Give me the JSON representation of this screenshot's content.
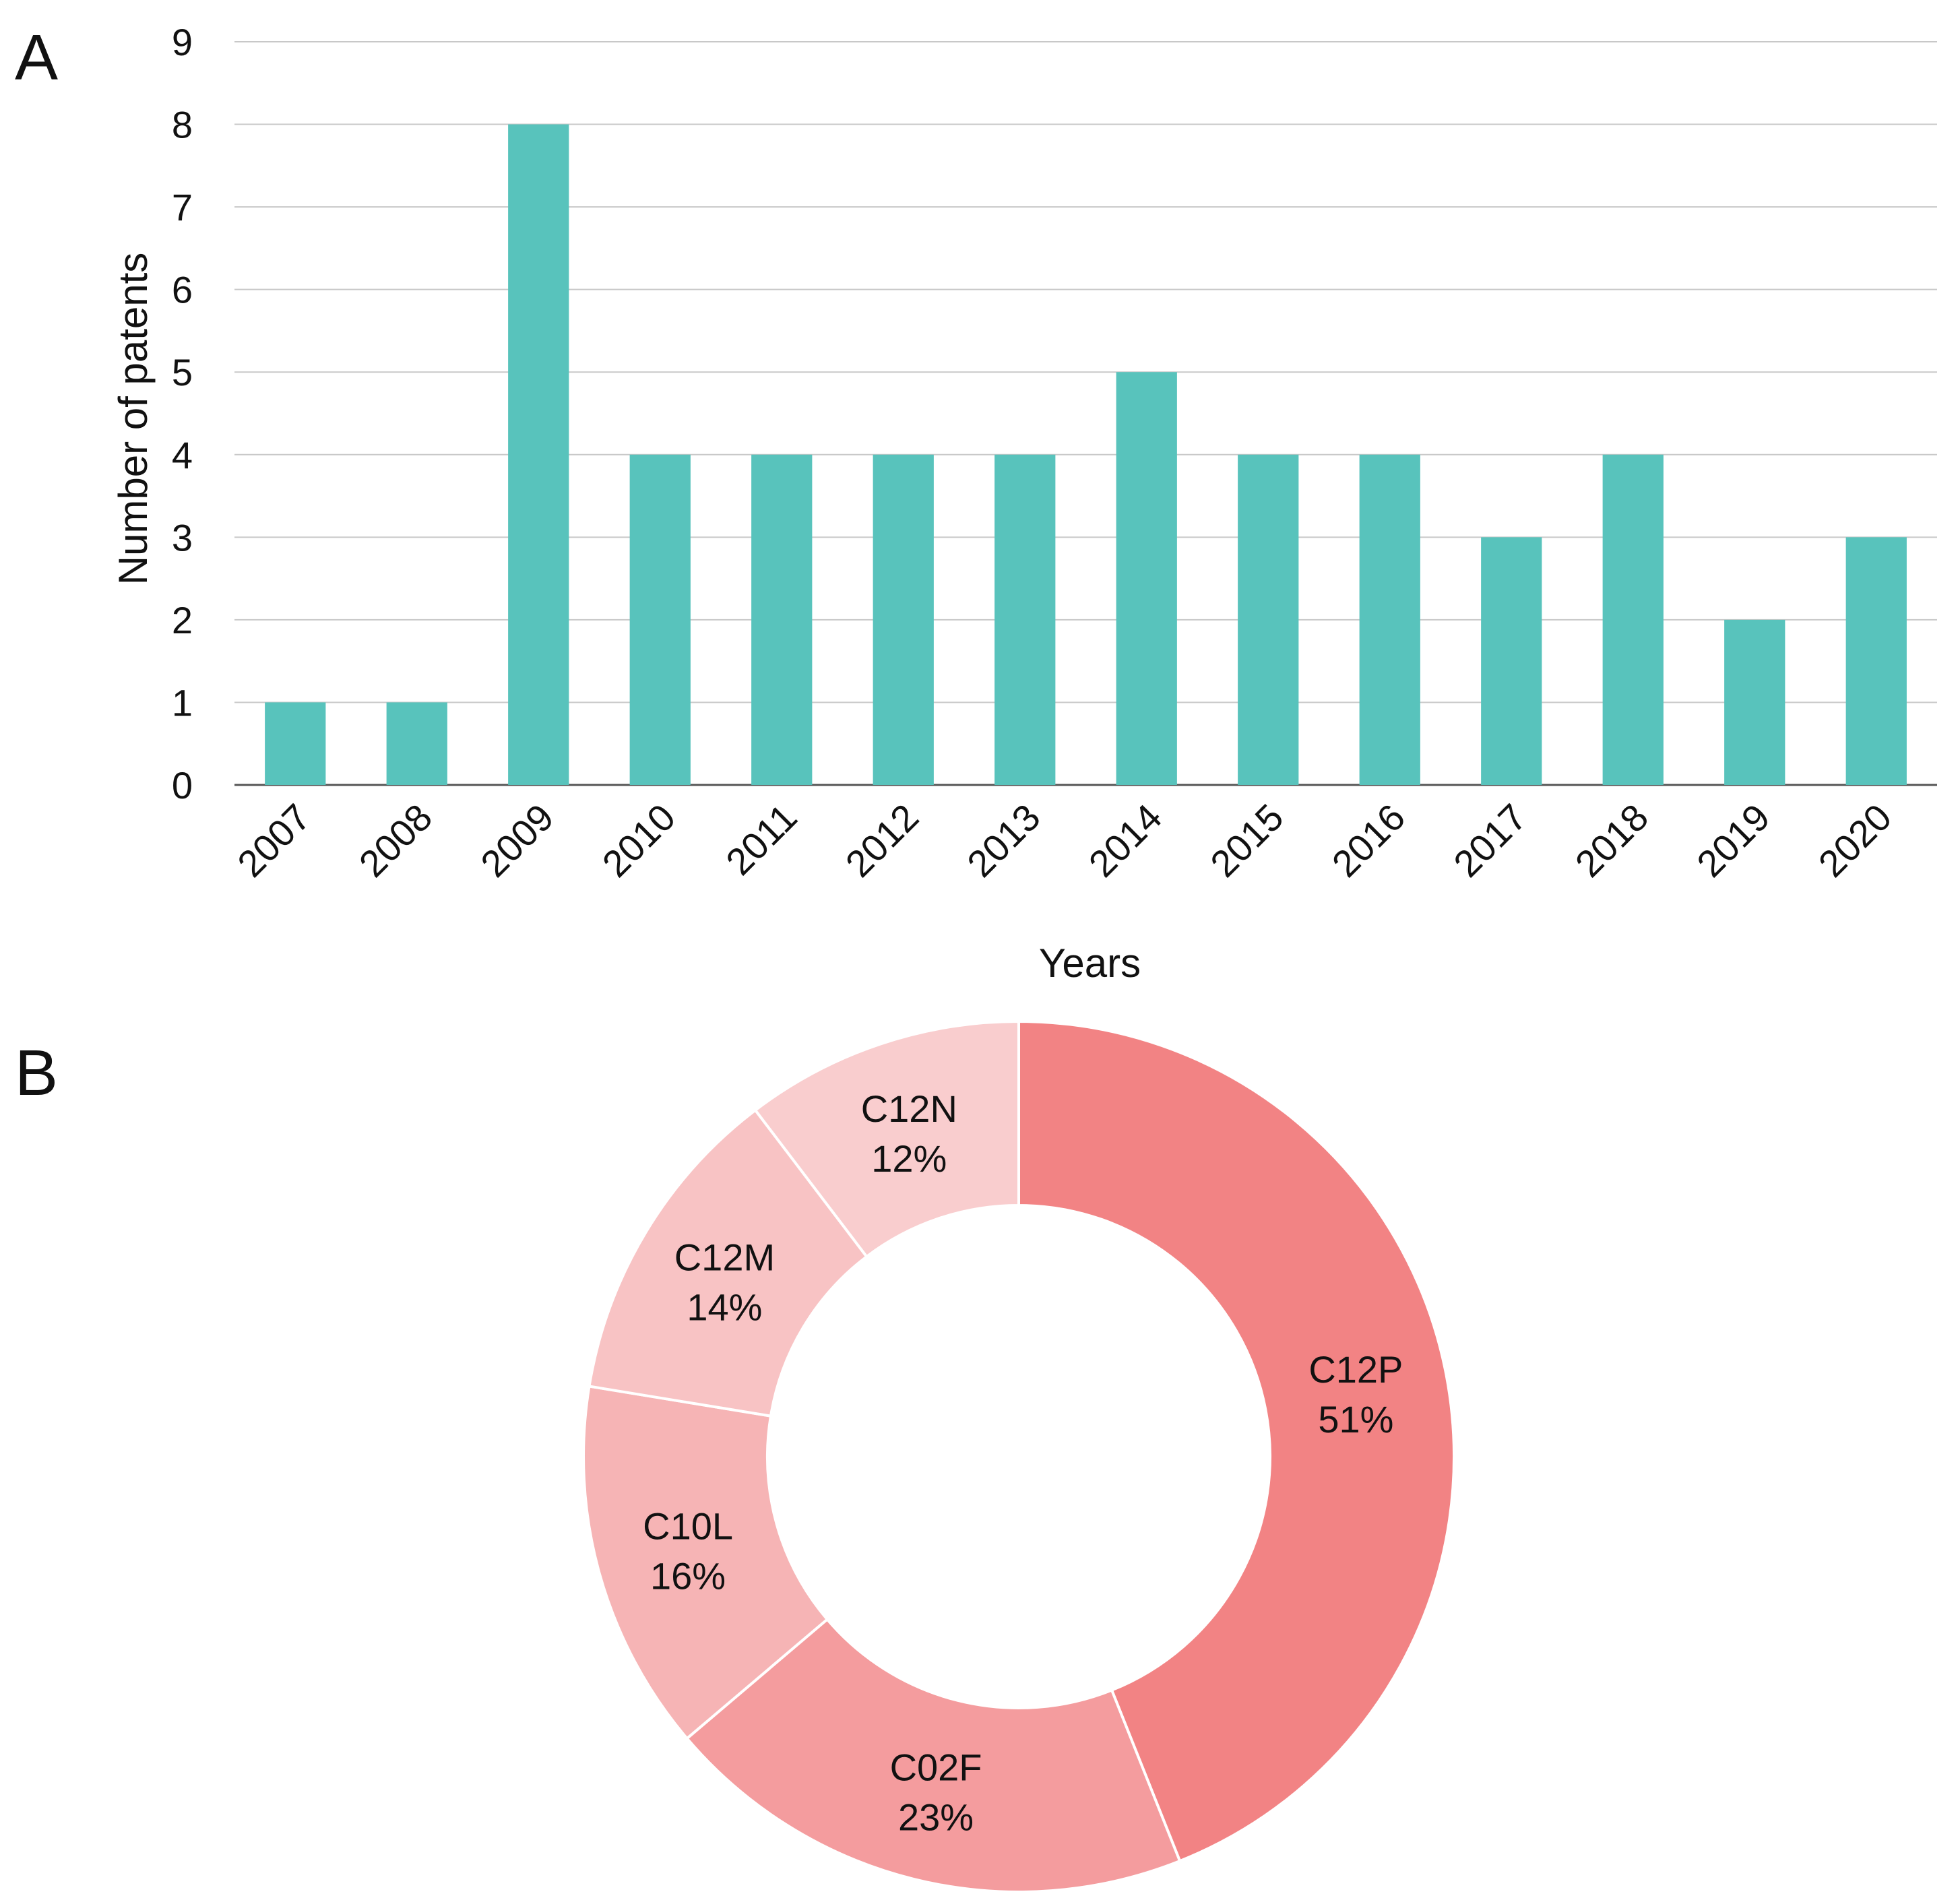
{
  "panels": {
    "a": "A",
    "b": "B"
  },
  "colors": {
    "bar": "#58C3BC",
    "grid": "#C8C8C8",
    "axis": "#555555",
    "slice_stroke": "#FFFFFF"
  },
  "chart_data": [
    {
      "type": "bar",
      "panel": "A",
      "title": "",
      "xlabel": "Years",
      "ylabel": "Number of patents",
      "categories": [
        "2007",
        "2008",
        "2009",
        "2010",
        "2011",
        "2012",
        "2013",
        "2014",
        "2015",
        "2016",
        "2017",
        "2018",
        "2019",
        "2020"
      ],
      "values": [
        1,
        1,
        8,
        4,
        4,
        4,
        4,
        5,
        4,
        4,
        3,
        4,
        2,
        3
      ],
      "ylim": [
        0,
        9
      ],
      "yticks": [
        0,
        1,
        2,
        3,
        4,
        5,
        6,
        7,
        8,
        9
      ],
      "grid": true,
      "legend": "none"
    },
    {
      "type": "pie",
      "variant": "donut",
      "panel": "B",
      "title": "",
      "legend": "none",
      "slices": [
        {
          "label": "C12P",
          "value": 51,
          "text": "51%",
          "color": "#F28384"
        },
        {
          "label": "C02F",
          "value": 23,
          "text": "23%",
          "color": "#F49C9E"
        },
        {
          "label": "C10L",
          "value": 16,
          "text": "16%",
          "color": "#F6B4B5"
        },
        {
          "label": "C12M",
          "value": 14,
          "text": "14%",
          "color": "#F8C3C4"
        },
        {
          "label": "C12N",
          "value": 12,
          "text": "12%",
          "color": "#F9CDCE"
        }
      ]
    }
  ]
}
